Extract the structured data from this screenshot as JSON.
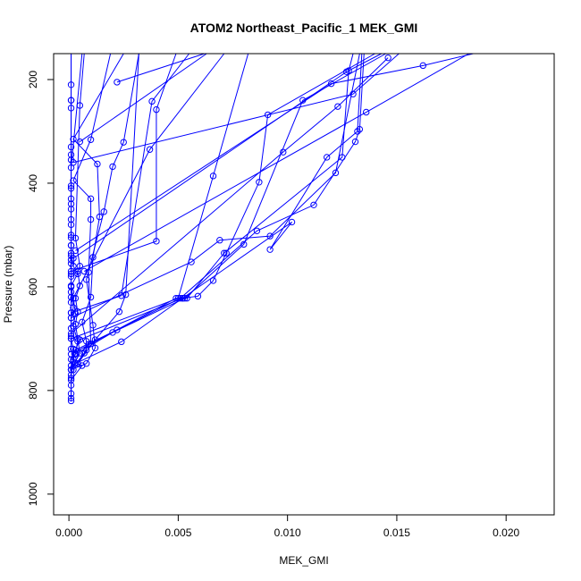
{
  "chart_data": {
    "type": "line",
    "title": "ATOM2 Northeast_Pacific_1 MEK_GMI",
    "xlabel": "MEK_GMI",
    "ylabel": "Pressure (mbar)",
    "xlim": [
      -0.0007,
      0.0222
    ],
    "ylim": [
      1040,
      150
    ],
    "y_reversed": true,
    "grid": false,
    "x_ticks": [
      0.0,
      0.005,
      0.01,
      0.015,
      0.02
    ],
    "x_tick_labels": [
      "0.000",
      "0.005",
      "0.010",
      "0.015",
      "0.020"
    ],
    "y_ticks": [
      200,
      400,
      600,
      800,
      1000
    ],
    "y_tick_labels": [
      "200",
      "400",
      "600",
      "800",
      "1000"
    ],
    "colors": {
      "series": "#0000ff",
      "axis": "#000000",
      "background": "#ffffff"
    },
    "series": [
      {
        "points": [
          [
            0.0001,
            820
          ],
          [
            0.0001,
            790
          ],
          [
            0.0001,
            760
          ],
          [
            0.0002,
            740
          ],
          [
            0.0002,
            720
          ],
          [
            0.0001,
            700
          ],
          [
            0.0001,
            680
          ],
          [
            0.0001,
            650
          ],
          [
            0.0001,
            620
          ],
          [
            0.0001,
            600
          ],
          [
            0.0001,
            575
          ],
          [
            0.0001,
            555
          ],
          [
            0.0001,
            540
          ],
          [
            0.0001,
            520
          ],
          [
            0.0001,
            500
          ],
          [
            0.0001,
            450
          ],
          [
            0.0001,
            410
          ],
          [
            0.0001,
            355
          ],
          [
            0.0001,
            330
          ],
          [
            0.0001,
            255
          ],
          [
            0.0001,
            240
          ],
          [
            0.0001,
            210
          ],
          [
            0.0001,
            150
          ]
        ]
      },
      {
        "points": [
          [
            0.0001,
            815
          ],
          [
            0.0001,
            770
          ],
          [
            0.0002,
            745
          ],
          [
            0.0001,
            720
          ],
          [
            0.0001,
            695
          ],
          [
            0.0001,
            660
          ],
          [
            0.0002,
            640
          ],
          [
            0.0001,
            610
          ],
          [
            0.0001,
            580
          ],
          [
            0.0001,
            548
          ],
          [
            0.0001,
            520
          ],
          [
            0.0001,
            480
          ],
          [
            0.0001,
            440
          ],
          [
            0.0001,
            405
          ],
          [
            0.0001,
            345
          ],
          [
            0.0001,
            240
          ],
          [
            0.0001,
            150
          ]
        ]
      },
      {
        "points": [
          [
            0.0001,
            806
          ],
          [
            0.0001,
            776
          ],
          [
            0.0001,
            752
          ],
          [
            0.0003,
            728
          ],
          [
            0.0004,
            705
          ],
          [
            0.0002,
            676
          ],
          [
            0.0003,
            652
          ],
          [
            0.0002,
            622
          ],
          [
            0.0001,
            598
          ],
          [
            0.0004,
            575
          ],
          [
            0.0002,
            560
          ],
          [
            0.0001,
            535
          ],
          [
            0.0001,
            505
          ],
          [
            0.0001,
            470
          ],
          [
            0.0001,
            430
          ],
          [
            0.0001,
            370
          ],
          [
            0.0006,
            150
          ]
        ]
      },
      {
        "points": [
          [
            0.0001,
            760
          ],
          [
            0.0005,
            728
          ],
          [
            0.0004,
            700
          ],
          [
            0.0003,
            672
          ],
          [
            0.0004,
            648
          ],
          [
            0.0003,
            622
          ],
          [
            0.0005,
            598
          ],
          [
            0.0004,
            570
          ],
          [
            0.0005,
            560
          ],
          [
            0.0003,
            506
          ],
          [
            0.0005,
            250
          ],
          [
            0.0007,
            150
          ]
        ]
      },
      {
        "points": [
          [
            0.0001,
            760
          ],
          [
            0.0007,
            728
          ],
          [
            0.0009,
            711
          ],
          [
            0.001,
            710
          ],
          [
            0.0009,
            572
          ],
          [
            0.001,
            470
          ],
          [
            0.001,
            430
          ],
          [
            0.0002,
            395
          ],
          [
            0.001,
            316
          ],
          [
            0.0019,
            150
          ]
        ]
      },
      {
        "points": [
          [
            0.0001,
            780
          ],
          [
            0.0006,
            752
          ],
          [
            0.0004,
            748
          ],
          [
            0.0008,
            722
          ],
          [
            0.0008,
            705
          ],
          [
            0.0006,
            668
          ],
          [
            0.001,
            620
          ],
          [
            0.0011,
            543
          ],
          [
            0.0014,
            465
          ],
          [
            0.0013,
            363
          ],
          [
            0.0002,
            315
          ],
          [
            0.0025,
            150
          ]
        ]
      },
      {
        "points": [
          [
            0.0001,
            760
          ],
          [
            0.0008,
            748
          ],
          [
            0.0012,
            718
          ],
          [
            0.0011,
            674
          ],
          [
            0.0008,
            586
          ],
          [
            0.0016,
            455
          ],
          [
            0.002,
            368
          ],
          [
            0.0025,
            321
          ],
          [
            0.0032,
            150
          ]
        ]
      },
      {
        "points": [
          [
            0.0002,
            760
          ],
          [
            0.0012,
            702
          ],
          [
            0.0023,
            648
          ],
          [
            0.0026,
            615
          ],
          [
            0.0032,
            150
          ]
        ]
      },
      {
        "points": [
          [
            0.0003,
            748
          ],
          [
            0.0024,
            706
          ],
          [
            0.0052,
            622
          ],
          [
            0.0102,
            475
          ],
          [
            0.0092,
            528
          ],
          [
            0.0118,
            350
          ],
          [
            0.0132,
            300
          ],
          [
            0.0134,
            150
          ]
        ]
      },
      {
        "points": [
          [
            0.0003,
            730
          ],
          [
            0.002,
            688
          ],
          [
            0.0053,
            622
          ],
          [
            0.008,
            518
          ],
          [
            0.0107,
            240
          ],
          [
            0.0145,
            150
          ]
        ]
      },
      {
        "points": [
          [
            0.0003,
            722
          ],
          [
            0.0022,
            683
          ],
          [
            0.0051,
            622
          ],
          [
            0.0086,
            492
          ],
          [
            0.0112,
            442
          ],
          [
            0.0131,
            320
          ],
          [
            0.0133,
            296
          ],
          [
            0.0135,
            150
          ]
        ]
      },
      {
        "points": [
          [
            0.0001,
            740
          ],
          [
            0.0005,
            702
          ],
          [
            0.0052,
            622
          ],
          [
            0.0059,
            618
          ],
          [
            0.0066,
            588
          ],
          [
            0.0072,
            535
          ],
          [
            0.0087,
            398
          ],
          [
            0.0091,
            268
          ],
          [
            0.014,
            150
          ]
        ]
      },
      {
        "points": [
          [
            0.0001,
            730
          ],
          [
            0.0049,
            622
          ],
          [
            0.0054,
            622
          ],
          [
            0.0071,
            535
          ],
          [
            0.0125,
            350
          ],
          [
            0.0128,
            183
          ],
          [
            0.013,
            150
          ]
        ]
      },
      {
        "points": [
          [
            0.0001,
            700
          ],
          [
            0.005,
            622
          ],
          [
            0.0066,
            386
          ],
          [
            0.0082,
            150
          ]
        ]
      },
      {
        "points": [
          [
            0.0001,
            650
          ],
          [
            0.0024,
            617
          ],
          [
            0.0038,
            242
          ],
          [
            0.0055,
            150
          ]
        ]
      },
      {
        "points": [
          [
            0.0001,
            660
          ],
          [
            0.0056,
            552
          ],
          [
            0.0069,
            510
          ],
          [
            0.0092,
            502
          ],
          [
            0.0122,
            380
          ],
          [
            0.0133,
            150
          ]
        ]
      },
      {
        "points": [
          [
            0.0001,
            570
          ],
          [
            0.004,
            512
          ],
          [
            0.004,
            258
          ],
          [
            0.0049,
            150
          ]
        ]
      },
      {
        "points": [
          [
            0.0001,
            630
          ],
          [
            0.0037,
            335
          ],
          [
            0.0071,
            150
          ]
        ]
      },
      {
        "points": [
          [
            0.0002,
            545
          ],
          [
            0.0127,
            185
          ],
          [
            0.0143,
            150
          ]
        ]
      },
      {
        "points": [
          [
            0.0007,
            570
          ],
          [
            0.0136,
            263
          ],
          [
            0.0183,
            150
          ]
        ]
      },
      {
        "points": [
          [
            0.0022,
            205
          ],
          [
            0.0062,
            150
          ]
        ]
      },
      {
        "points": [
          [
            0.0005,
            320
          ],
          [
            0.0063,
            150
          ]
        ]
      },
      {
        "points": [
          [
            0.0002,
            360
          ],
          [
            0.013,
            228
          ],
          [
            0.0151,
            150
          ]
        ]
      },
      {
        "points": [
          [
            0.0003,
            530
          ],
          [
            0.012,
            208
          ],
          [
            0.0162,
            173
          ],
          [
            0.0185,
            150
          ]
        ]
      },
      {
        "points": [
          [
            0.0001,
            690
          ],
          [
            0.0098,
            340
          ],
          [
            0.0123,
            252
          ],
          [
            0.0146,
            158
          ]
        ]
      }
    ]
  }
}
